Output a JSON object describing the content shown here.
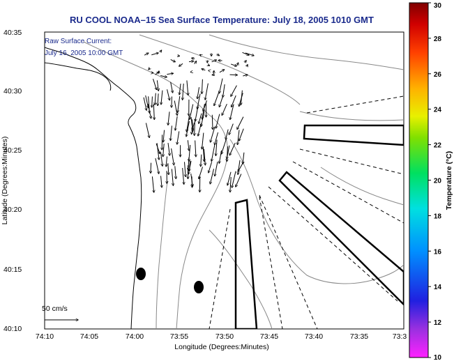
{
  "chart_data": {
    "type": "map",
    "title": "RU COOL  NOAA–15  Sea Surface Temperature:  July 18, 2005 1010 GMT",
    "xlabel": "Longitude (Degrees:Minutes)",
    "ylabel": "Latitude (Degrees:Minutes)",
    "x_ticks": [
      "74:10",
      "74:05",
      "74:00",
      "73:55",
      "73:50",
      "73:45",
      "73:40",
      "73:35",
      "73:3"
    ],
    "y_ticks": [
      "40:10",
      "40:15",
      "40:20",
      "40:25",
      "40:30",
      "40:35"
    ],
    "xlim_deg": [
      -74.1667,
      -73.5
    ],
    "ylim_deg": [
      40.1667,
      40.5833
    ],
    "annotation_lines": [
      "Raw Surface Current:",
      "July 16, 2005 10:00 GMT"
    ],
    "scale_label": "50 cm/s",
    "colorbar": {
      "label": "Temperature (°C)",
      "min": 10,
      "max": 30,
      "ticks": [
        "10",
        "12",
        "14",
        "16",
        "18",
        "20",
        "22",
        "24",
        "26",
        "28",
        "30"
      ]
    },
    "markers": [
      {
        "name": "marker-1",
        "lon_min": 73.98,
        "lat_min": 14.65
      },
      {
        "name": "marker-2",
        "lon_min": 73.87,
        "lat_min": 13.45
      }
    ]
  }
}
